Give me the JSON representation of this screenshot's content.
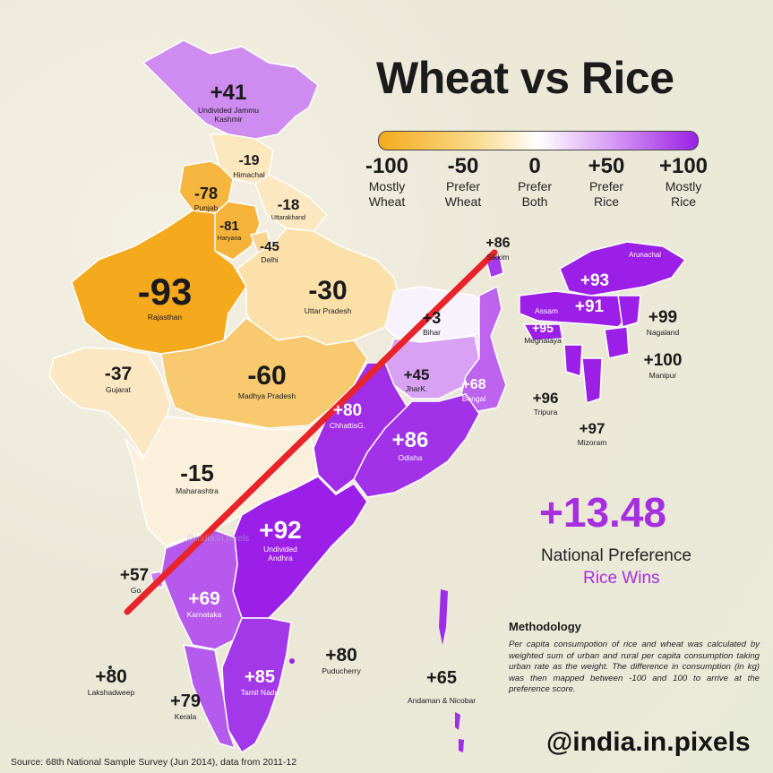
{
  "title": "Wheat vs Rice",
  "scale": [
    {
      "value": "-100",
      "label1": "Mostly",
      "label2": "Wheat"
    },
    {
      "value": "-50",
      "label1": "Prefer",
      "label2": "Wheat"
    },
    {
      "value": "0",
      "label1": "Prefer",
      "label2": "Both"
    },
    {
      "value": "+50",
      "label1": "Prefer",
      "label2": "Rice"
    },
    {
      "value": "+100",
      "label1": "Mostly",
      "label2": "Rice"
    }
  ],
  "colors": {
    "wheat": "#f5aa1c",
    "neutral": "#ffffff",
    "rice": "#9b1fe6",
    "divider": "#e8232a"
  },
  "regions": [
    {
      "name": "Undivided Jammu Kashmir",
      "value": "+41"
    },
    {
      "name": "Himachal",
      "value": "-19"
    },
    {
      "name": "Punjab",
      "value": "-78"
    },
    {
      "name": "Uttarakhand",
      "value": "-18"
    },
    {
      "name": "Haryana",
      "value": "-81"
    },
    {
      "name": "Delhi",
      "value": "-45"
    },
    {
      "name": "Rajasthan",
      "value": "-93"
    },
    {
      "name": "Uttar Pradesh",
      "value": "-30"
    },
    {
      "name": "Gujarat",
      "value": "-37"
    },
    {
      "name": "Madhya Pradesh",
      "value": "-60"
    },
    {
      "name": "Bihar",
      "value": "+3"
    },
    {
      "name": "Sikkim",
      "value": "+86"
    },
    {
      "name": "Arunachal",
      "value": "+93"
    },
    {
      "name": "Assam",
      "value": "+91"
    },
    {
      "name": "Meghalaya",
      "value": "+95"
    },
    {
      "name": "Nagaland",
      "value": "+99"
    },
    {
      "name": "Manipur",
      "value": "+100"
    },
    {
      "name": "Tripura",
      "value": "+96"
    },
    {
      "name": "Mizoram",
      "value": "+97"
    },
    {
      "name": "JharK.",
      "value": "+45"
    },
    {
      "name": "Bengal",
      "value": "+68"
    },
    {
      "name": "ChhattisG.",
      "value": "+80"
    },
    {
      "name": "Odisha",
      "value": "+86"
    },
    {
      "name": "Maharashtra",
      "value": "-15"
    },
    {
      "name": "Undivided Andhra",
      "value": "+92"
    },
    {
      "name": "Goa",
      "value": "+57"
    },
    {
      "name": "Karnataka",
      "value": "+69"
    },
    {
      "name": "Tamil Nadu",
      "value": "+85"
    },
    {
      "name": "Kerala",
      "value": "+79"
    },
    {
      "name": "Lakshadweep",
      "value": "+80"
    },
    {
      "name": "Puducherry",
      "value": "+80"
    },
    {
      "name": "Andaman & Nicobar",
      "value": "+65"
    }
  ],
  "national": {
    "value": "+13.48",
    "label": "National Preference",
    "verdict": "Rice Wins"
  },
  "methodology": {
    "heading": "Methodology",
    "text": "Per capita consumpotion of rice and wheat was calculated by weighted sum of urban and rural per capita consumption taking urban rate as the weight. The difference in consumption (in kg) was then mapped between -100 and 100 to arrive at the preference score."
  },
  "handle": "@india.in.pixels",
  "watermark": "@india.in.pixels",
  "source": "Source: 68th National Sample Survey (Jun 2014), data from 2011-12"
}
